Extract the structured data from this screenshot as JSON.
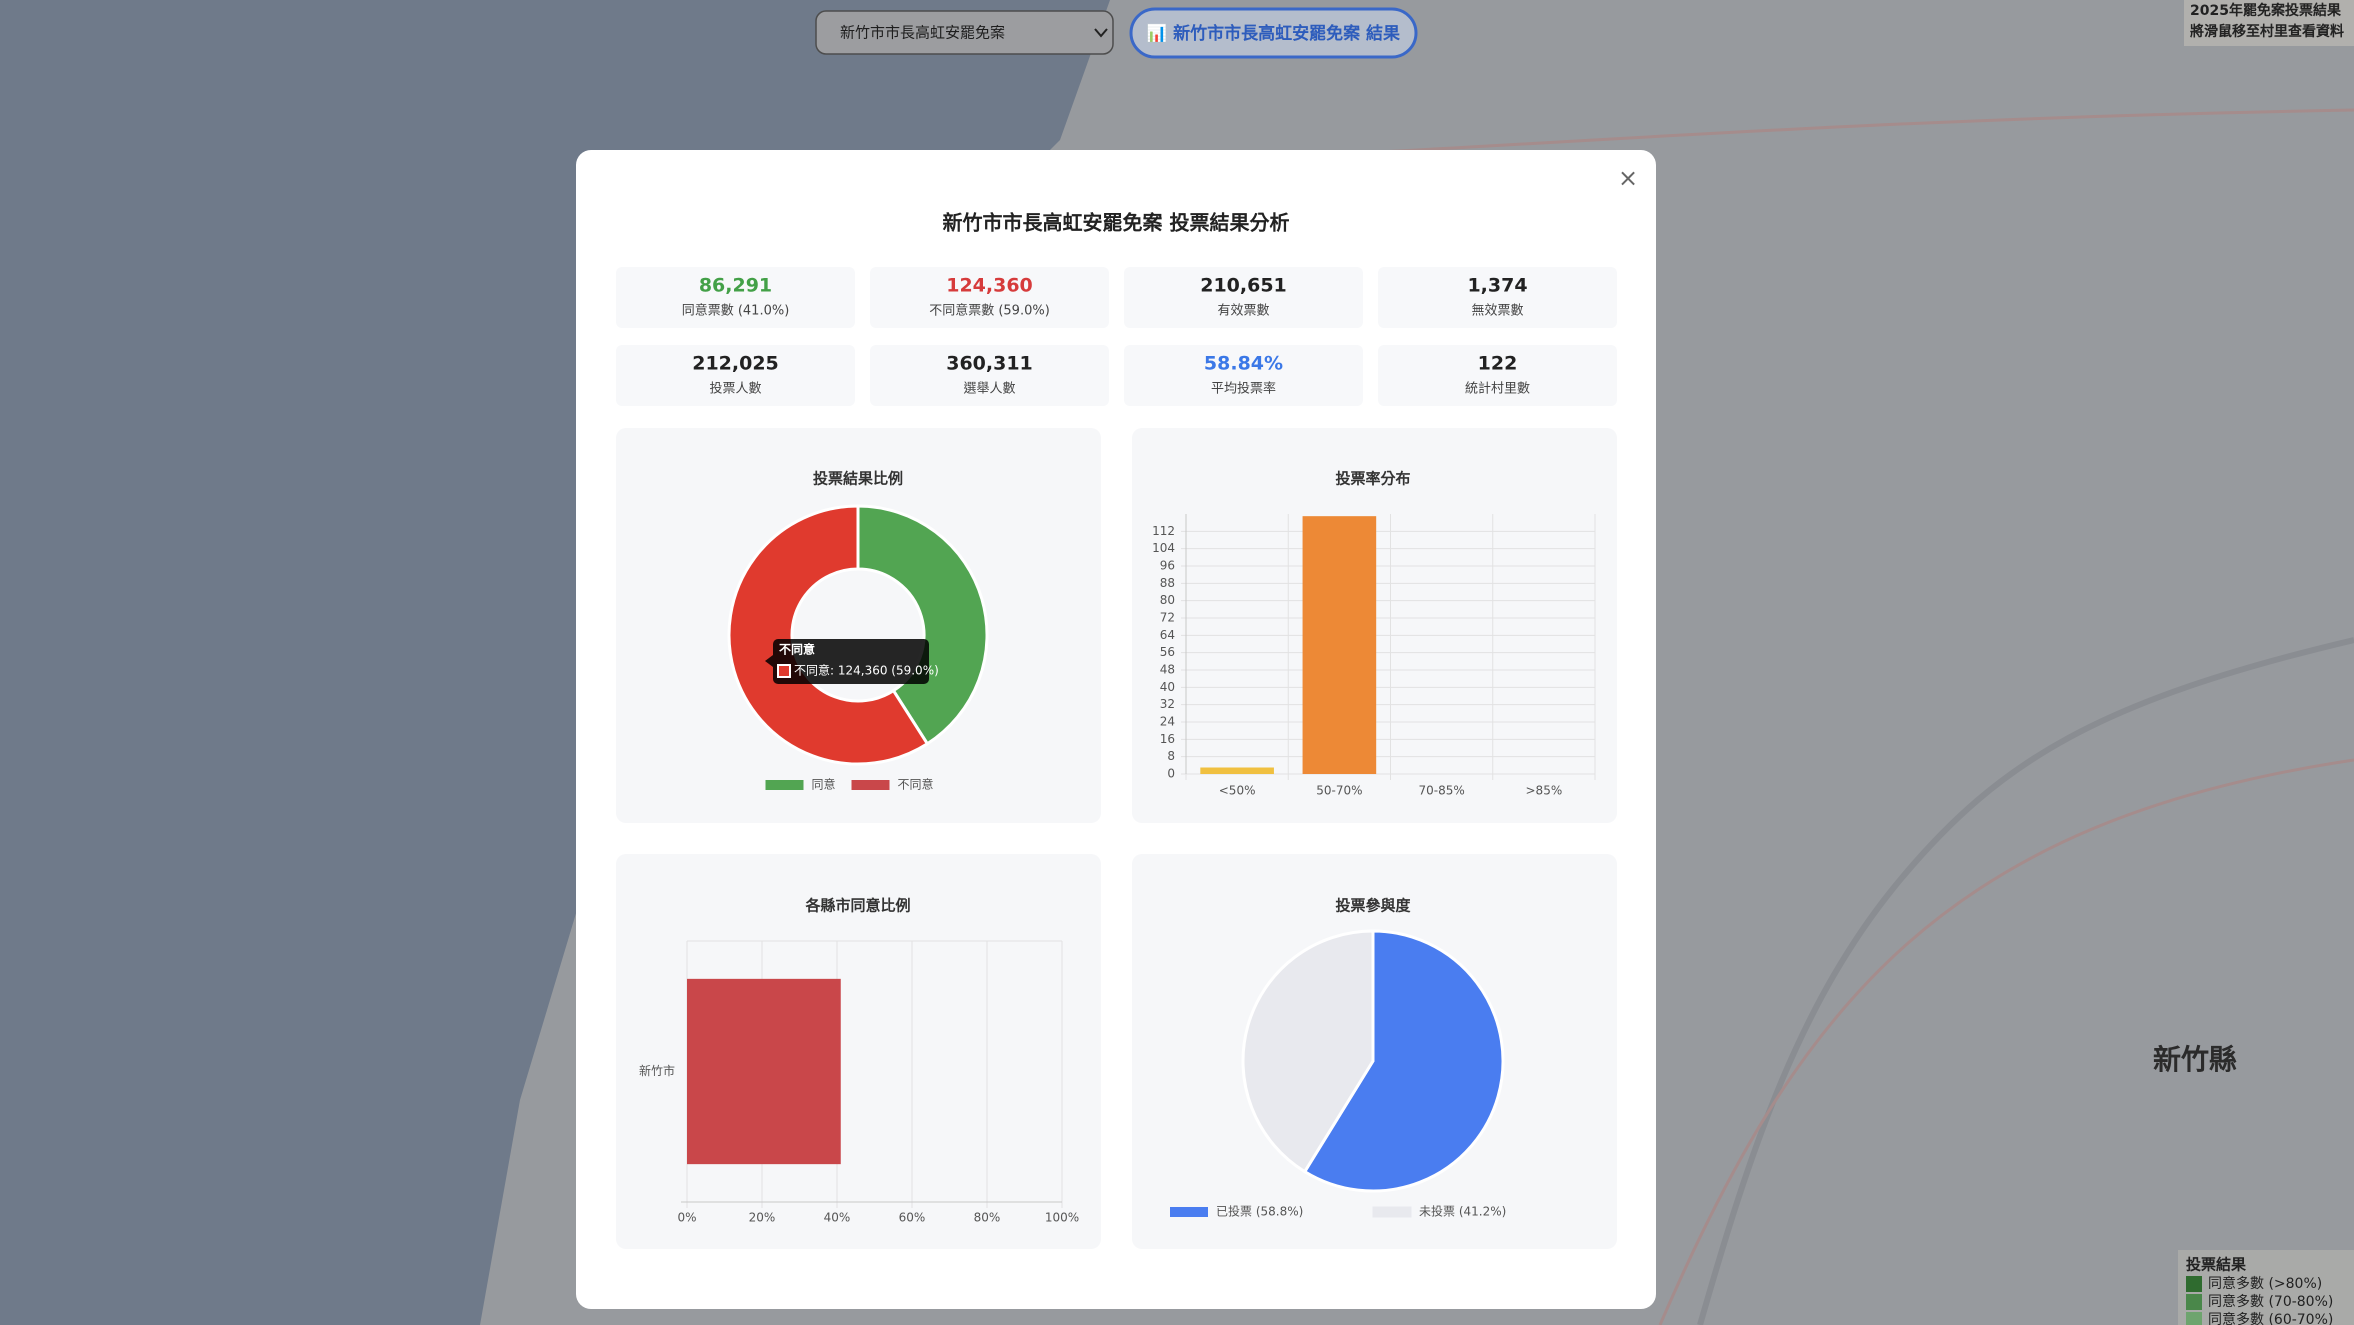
{
  "header": {
    "select": "新竹市市長高虹安罷免案",
    "button": "📊 新竹市市長高虹安罷免案 結果"
  },
  "info_panel": {
    "title": "2025年罷免案投票結果",
    "hint": "將滑鼠移至村里查看資料"
  },
  "map": {
    "labels": [
      "新竹縣"
    ]
  },
  "map_legend": {
    "title": "投票結果",
    "items": [
      {
        "label": "同意多數 (>80%)",
        "color": "#2f6b2f"
      },
      {
        "label": "同意多數 (70-80%)",
        "color": "#4a874a"
      },
      {
        "label": "同意多數 (60-70%)",
        "color": "#6ea46e"
      }
    ]
  },
  "modal": {
    "close": "×",
    "title": "新竹市市長高虹安罷免案 投票結果分析",
    "stats": [
      {
        "value": "86,291",
        "label": "同意票數 (41.0%)",
        "color": "#43a047"
      },
      {
        "value": "124,360",
        "label": "不同意票數 (59.0%)",
        "color": "#d63b3b"
      },
      {
        "value": "210,651",
        "label": "有效票數",
        "color": "#222222"
      },
      {
        "value": "1,374",
        "label": "無效票數",
        "color": "#222222"
      },
      {
        "value": "212,025",
        "label": "投票人數",
        "color": "#222222"
      },
      {
        "value": "360,311",
        "label": "選舉人數",
        "color": "#222222"
      },
      {
        "value": "58.84%",
        "label": "平均投票率",
        "color": "#3b78e7"
      },
      {
        "value": "122",
        "label": "統計村里數",
        "color": "#222222"
      }
    ]
  },
  "chart_data": [
    {
      "type": "doughnut",
      "title": "投票結果比例",
      "categories": [
        "同意",
        "不同意"
      ],
      "values": [
        86291,
        124360
      ],
      "colors": [
        "#52a552",
        "#e03a2e"
      ],
      "legend_colors": [
        "#52a552",
        "#c9474a"
      ],
      "tooltip": {
        "title": "不同意",
        "label": "不同意: 124,360 (59.0%)"
      }
    },
    {
      "type": "bar",
      "title": "投票率分布",
      "categories": [
        "<50%",
        "50-70%",
        "70-85%",
        ">85%"
      ],
      "values": [
        3,
        119,
        0,
        0
      ],
      "colors": [
        "#f0c040",
        "#ed8936",
        "#48bb78",
        "#38a169"
      ],
      "ylim": [
        0,
        120
      ],
      "yticks": [
        0,
        8,
        16,
        24,
        32,
        40,
        48,
        56,
        64,
        72,
        80,
        88,
        96,
        104,
        112
      ],
      "grid": true
    },
    {
      "type": "hbar",
      "title": "各縣市同意比例",
      "categories": [
        "新竹市"
      ],
      "values": [
        41.0
      ],
      "color": "#c9474a",
      "xlim": [
        0,
        100
      ],
      "xticks": [
        {
          "value": 0,
          "label": "0%"
        },
        {
          "value": 20,
          "label": "20%"
        },
        {
          "value": 40,
          "label": "40%"
        },
        {
          "value": 60,
          "label": "60%"
        },
        {
          "value": 80,
          "label": "80%"
        },
        {
          "value": 100,
          "label": "100%"
        }
      ],
      "grid": true
    },
    {
      "type": "pie",
      "title": "投票參與度",
      "categories": [
        "已投票 (58.8%)",
        "未投票 (41.2%)"
      ],
      "values": [
        58.8,
        41.2
      ],
      "colors": [
        "#4a7df0",
        "#e8e9ee"
      ]
    }
  ]
}
